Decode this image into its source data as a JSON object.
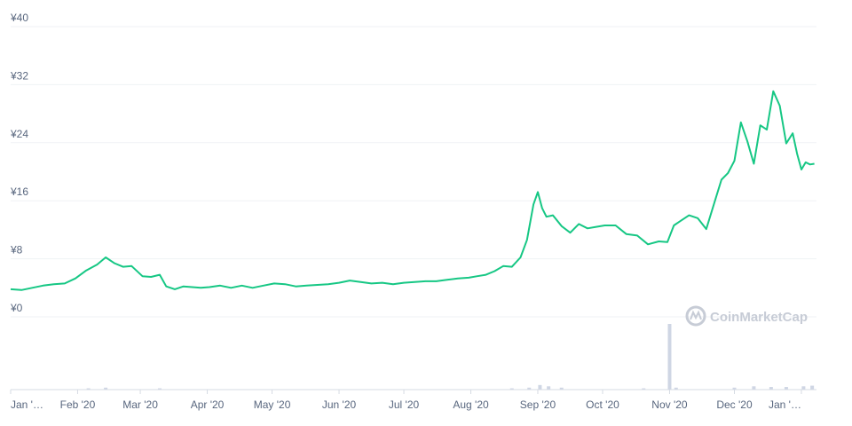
{
  "chart_data": {
    "type": "line",
    "title": "",
    "xlabel": "",
    "ylabel": "",
    "currency": "¥",
    "ylim": [
      0,
      40
    ],
    "yticks": [
      0,
      8,
      16,
      24,
      32,
      40
    ],
    "ytick_labels": [
      "¥0",
      "¥8",
      "¥16",
      "¥24",
      "¥32",
      "¥40"
    ],
    "xtick_labels": [
      "Jan '…",
      "Feb '20",
      "Mar '20",
      "Apr '20",
      "May '20",
      "Jun '20",
      "Jul '20",
      "Aug '20",
      "Sep '20",
      "Oct '20",
      "Nov '20",
      "Dec '20",
      "Jan '…"
    ],
    "xtick_dates": [
      "2020-01-01",
      "2020-02-01",
      "2020-03-01",
      "2020-04-01",
      "2020-05-01",
      "2020-06-01",
      "2020-07-01",
      "2020-08-01",
      "2020-09-01",
      "2020-10-01",
      "2020-11-01",
      "2020-12-01",
      "2021-01-01"
    ],
    "x_range": [
      "2020-01-01",
      "2021-01-08"
    ],
    "grid": true,
    "line_color": "#16c784",
    "series": [
      {
        "x": [
          "2020-01-01",
          "2020-01-06",
          "2020-01-11",
          "2020-01-16",
          "2020-01-21",
          "2020-01-26",
          "2020-01-31",
          "2020-02-05",
          "2020-02-10",
          "2020-02-14",
          "2020-02-18",
          "2020-02-22",
          "2020-02-26",
          "2020-03-02",
          "2020-03-06",
          "2020-03-10",
          "2020-03-13",
          "2020-03-17",
          "2020-03-21",
          "2020-03-25",
          "2020-03-29",
          "2020-04-02",
          "2020-04-07",
          "2020-04-12",
          "2020-04-17",
          "2020-04-22",
          "2020-04-27",
          "2020-05-02",
          "2020-05-07",
          "2020-05-12",
          "2020-05-17",
          "2020-05-22",
          "2020-05-27",
          "2020-06-01",
          "2020-06-06",
          "2020-06-11",
          "2020-06-16",
          "2020-06-21",
          "2020-06-26",
          "2020-07-01",
          "2020-07-06",
          "2020-07-11",
          "2020-07-16",
          "2020-07-21",
          "2020-07-26",
          "2020-07-31",
          "2020-08-04",
          "2020-08-08",
          "2020-08-12",
          "2020-08-16",
          "2020-08-20",
          "2020-08-24",
          "2020-08-27",
          "2020-08-30",
          "2020-09-01",
          "2020-09-03",
          "2020-09-05",
          "2020-09-08",
          "2020-09-12",
          "2020-09-16",
          "2020-09-20",
          "2020-09-24",
          "2020-09-28",
          "2020-10-02",
          "2020-10-07",
          "2020-10-12",
          "2020-10-17",
          "2020-10-22",
          "2020-10-27",
          "2020-10-31",
          "2020-11-03",
          "2020-11-06",
          "2020-11-10",
          "2020-11-14",
          "2020-11-18",
          "2020-11-22",
          "2020-11-25",
          "2020-11-28",
          "2020-12-01",
          "2020-12-04",
          "2020-12-07",
          "2020-12-10",
          "2020-12-13",
          "2020-12-16",
          "2020-12-19",
          "2020-12-22",
          "2020-12-25",
          "2020-12-28",
          "2020-12-30",
          "2021-01-01",
          "2021-01-03",
          "2021-01-05",
          "2021-01-07"
        ],
        "values": [
          3.8,
          3.7,
          4.0,
          4.3,
          4.5,
          4.6,
          5.3,
          6.4,
          7.2,
          8.2,
          7.4,
          6.9,
          7.0,
          5.6,
          5.5,
          5.8,
          4.2,
          3.8,
          4.2,
          4.1,
          4.0,
          4.1,
          4.3,
          4.0,
          4.3,
          4.0,
          4.3,
          4.6,
          4.5,
          4.2,
          4.3,
          4.4,
          4.5,
          4.7,
          5.0,
          4.8,
          4.6,
          4.7,
          4.5,
          4.7,
          4.8,
          4.9,
          4.9,
          5.1,
          5.3,
          5.4,
          5.6,
          5.8,
          6.3,
          7.0,
          6.9,
          8.2,
          10.6,
          15.5,
          17.2,
          15.0,
          13.8,
          14.0,
          12.5,
          11.6,
          12.8,
          12.2,
          12.4,
          12.6,
          12.6,
          11.4,
          11.2,
          10.0,
          10.4,
          10.3,
          12.6,
          13.2,
          14.0,
          13.6,
          12.1,
          16.0,
          18.9,
          19.8,
          21.5,
          26.8,
          24.2,
          21.1,
          26.4,
          25.8,
          31.1,
          29.1,
          23.9,
          25.3,
          22.5,
          20.3,
          21.3,
          21.0,
          21.1
        ]
      }
    ],
    "volume": {
      "x": [
        "2020-02-06",
        "2020-02-14",
        "2020-03-10",
        "2020-08-20",
        "2020-08-28",
        "2020-09-02",
        "2020-09-06",
        "2020-09-12",
        "2020-10-20",
        "2020-11-01",
        "2020-11-04",
        "2020-12-01",
        "2020-12-10",
        "2020-12-18",
        "2020-12-25",
        "2021-01-02",
        "2021-01-06"
      ],
      "values": [
        0.02,
        0.03,
        0.02,
        0.02,
        0.03,
        0.07,
        0.05,
        0.03,
        0.02,
        1.0,
        0.03,
        0.03,
        0.05,
        0.04,
        0.04,
        0.05,
        0.06
      ],
      "color": "#cfd6e4"
    },
    "watermark": "CoinMarketCap"
  }
}
